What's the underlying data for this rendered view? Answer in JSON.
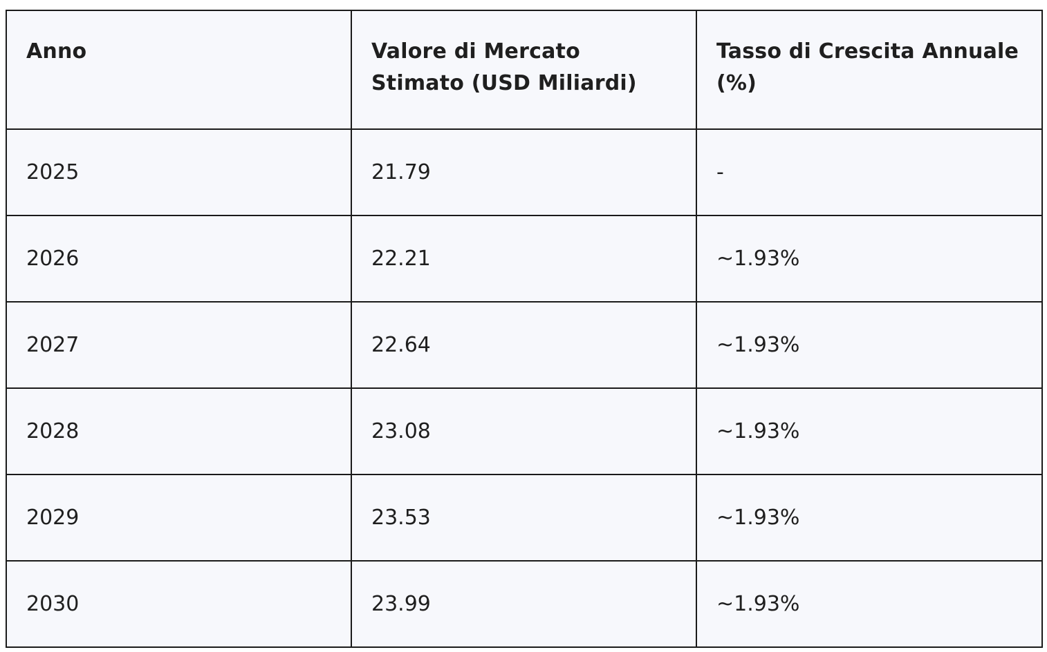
{
  "chart_data": {
    "type": "table",
    "columns": [
      "Anno",
      "Valore di Mercato Stimato (USD Miliardi)",
      "Tasso di Crescita Annuale (%)"
    ],
    "rows": [
      [
        "2025",
        "21.79",
        "-"
      ],
      [
        "2026",
        "22.21",
        "~1.93%"
      ],
      [
        "2027",
        "22.64",
        "~1.93%"
      ],
      [
        "2028",
        "23.08",
        "~1.93%"
      ],
      [
        "2029",
        "23.53",
        "~1.93%"
      ],
      [
        "2030",
        "23.99",
        "~1.93%"
      ]
    ]
  },
  "colors": {
    "cell_background": "#f7f8fc",
    "border": "#1a1a1a",
    "text": "#1f1f1f"
  }
}
